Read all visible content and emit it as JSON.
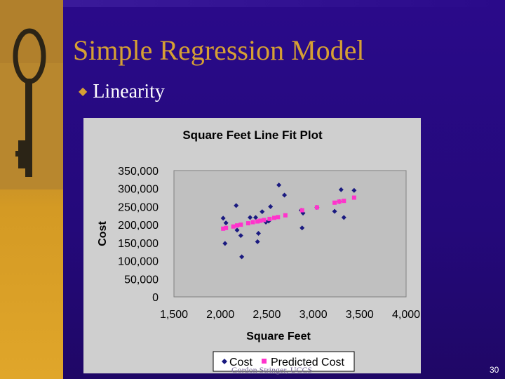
{
  "slide": {
    "title": "Simple Regression Model",
    "bullet": "Linearity",
    "footer": "Gordon Stringer, UCCS",
    "page_number": "30",
    "bullet_glyph": "◆"
  },
  "colors": {
    "background": "#2a0a8a",
    "title": "#d6a033",
    "chart_bg": "#cfcfcf",
    "plot_bg": "#c0c0c0",
    "cost_marker": "#1a1a80",
    "predicted_marker": "#ff33cc"
  },
  "chart_data": {
    "type": "scatter",
    "title": "Square Feet Line Fit  Plot",
    "xlabel": "Square Feet",
    "ylabel": "Cost",
    "xlim": [
      1500,
      4000
    ],
    "ylim": [
      0,
      350000
    ],
    "x_ticks": [
      "1,500",
      "2,000",
      "2,500",
      "3,000",
      "3,500",
      "4,000"
    ],
    "y_ticks": [
      "0",
      "50,000",
      "100,000",
      "150,000",
      "200,000",
      "250,000",
      "300,000",
      "350,000"
    ],
    "grid": false,
    "legend_position": "bottom",
    "series": [
      {
        "name": "Cost",
        "marker": "diamond",
        "color": "#1a1a80",
        "points": [
          [
            2030,
            218000
          ],
          [
            2050,
            148000
          ],
          [
            2060,
            205000
          ],
          [
            2170,
            253000
          ],
          [
            2180,
            185000
          ],
          [
            2220,
            170000
          ],
          [
            2230,
            111000
          ],
          [
            2320,
            220000
          ],
          [
            2380,
            220000
          ],
          [
            2400,
            153000
          ],
          [
            2410,
            176000
          ],
          [
            2450,
            236000
          ],
          [
            2490,
            207000
          ],
          [
            2520,
            210000
          ],
          [
            2540,
            250000
          ],
          [
            2630,
            310000
          ],
          [
            2690,
            282000
          ],
          [
            2870,
            240000
          ],
          [
            2880,
            191000
          ],
          [
            2890,
            232000
          ],
          [
            3040,
            248000
          ],
          [
            3230,
            237000
          ],
          [
            3280,
            264000
          ],
          [
            3300,
            297000
          ],
          [
            3330,
            220000
          ],
          [
            3440,
            295000
          ]
        ]
      },
      {
        "name": "Predicted Cost",
        "marker": "square",
        "color": "#ff33cc",
        "points": [
          [
            2030,
            189000
          ],
          [
            2060,
            191000
          ],
          [
            2140,
            195000
          ],
          [
            2180,
            198000
          ],
          [
            2220,
            200000
          ],
          [
            2300,
            204000
          ],
          [
            2350,
            207000
          ],
          [
            2400,
            209000
          ],
          [
            2430,
            211000
          ],
          [
            2470,
            213000
          ],
          [
            2530,
            216000
          ],
          [
            2580,
            219000
          ],
          [
            2620,
            221000
          ],
          [
            2700,
            226000
          ],
          [
            2880,
            240000
          ],
          [
            3040,
            248000
          ],
          [
            3230,
            261000
          ],
          [
            3280,
            264000
          ],
          [
            3330,
            266000
          ],
          [
            3440,
            275000
          ]
        ]
      }
    ]
  }
}
